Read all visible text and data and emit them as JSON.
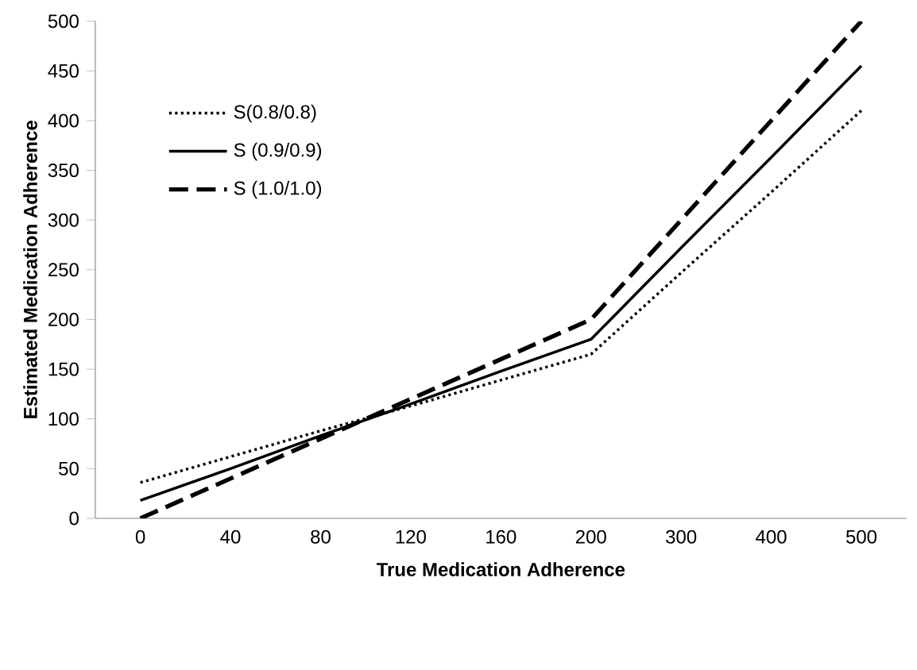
{
  "chart_data": {
    "type": "line",
    "xlabel": "True Medication Adherence",
    "ylabel": "Estimated Medication Adherence",
    "categories": [
      "0",
      "40",
      "80",
      "120",
      "160",
      "200",
      "300",
      "400",
      "500"
    ],
    "series": [
      {
        "name": "S(0.8/0.8)",
        "color": "#000000",
        "line_style": "dotted",
        "values": [
          36,
          62,
          88,
          113,
          139,
          165,
          247,
          328,
          410
        ]
      },
      {
        "name": "S (0.9/0.9)",
        "color": "#000000",
        "line_style": "solid",
        "values": [
          18,
          50,
          83,
          115,
          148,
          180,
          272,
          363,
          455
        ]
      },
      {
        "name": "S (1.0/1.0)",
        "color": "#000000",
        "line_style": "dashed",
        "values": [
          0,
          40,
          80,
          120,
          160,
          200,
          300,
          400,
          500
        ]
      }
    ],
    "ylim": [
      0,
      500
    ],
    "yticks": [
      0,
      50,
      100,
      150,
      200,
      250,
      300,
      350,
      400,
      450,
      500
    ],
    "grid": false,
    "legend": "top left",
    "marker": "none"
  }
}
